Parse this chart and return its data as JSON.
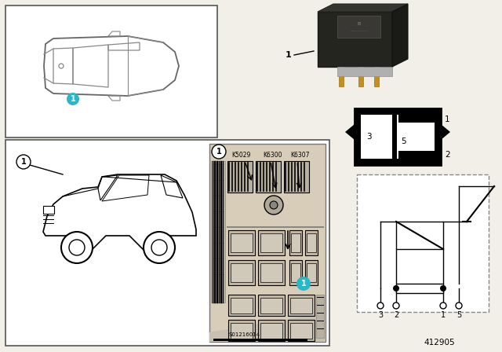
{
  "bg_color": "#f2efe9",
  "white": "#ffffff",
  "black": "#000000",
  "cyan": "#2ab8c8",
  "gray_car": "#d0ccc4",
  "gray_line": "#888888",
  "relay_dark": "#1a1a1a",
  "relay_pins_gold": "#c8a040",
  "relay_pins_silver": "#b0b0b0",
  "fuse_bg": "#d8cdb8",
  "fuse_dark": "#a89878",
  "part_number": "412905",
  "label1_topleft": "1",
  "label1_bottomleft": "1",
  "label1_fusebox": "1",
  "label1_relay": "1",
  "fuse_labels": [
    "K5029",
    "K6300",
    "K6307"
  ],
  "pin_labels_schematic": [
    "3",
    "2",
    "1",
    "5"
  ],
  "pin_labels_box": [
    "3",
    "5",
    "1",
    "2"
  ]
}
